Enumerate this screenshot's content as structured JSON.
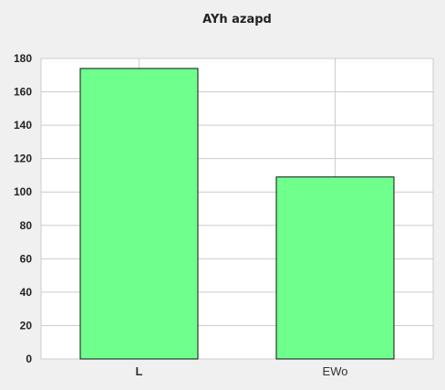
{
  "chart_data": {
    "type": "bar",
    "title": "AYh azapd",
    "xlabel": "",
    "ylabel": "",
    "categories": [
      "L",
      "EWo"
    ],
    "values": [
      174,
      109
    ],
    "ylim": [
      0,
      180
    ],
    "yticks": [
      0,
      20,
      40,
      60,
      80,
      100,
      120,
      140,
      160,
      180
    ],
    "grid": true,
    "bar_color": "#6eff8c",
    "bar_edge_color": "#111111",
    "grid_color": "#cccccc",
    "plot_background": "#ffffff",
    "page_background": "#f0f0f0"
  }
}
